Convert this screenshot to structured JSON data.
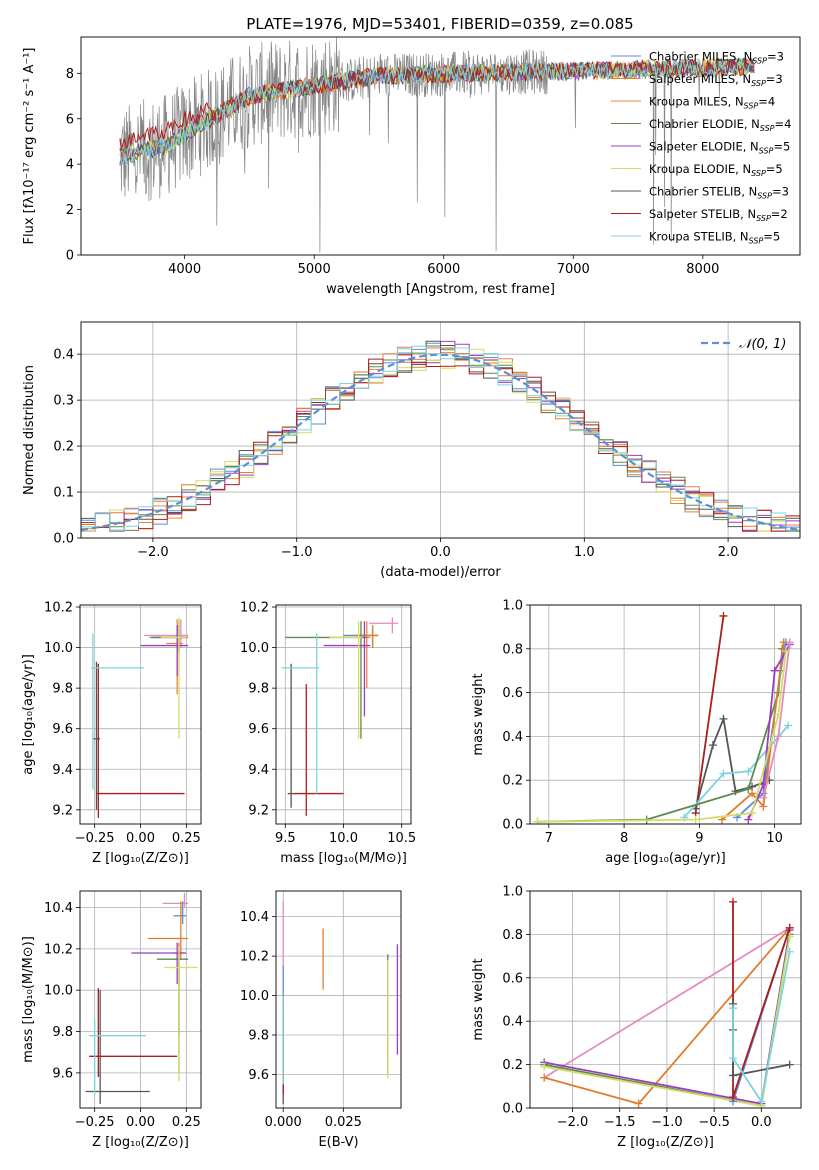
{
  "figure": {
    "title": "PLATE=1976, MJD=53401, FIBERID=0359, z=0.085"
  },
  "colors": {
    "cm": "#5b8fd6",
    "sm": "#e07d2c",
    "km": "#e8843a",
    "ce": "#5f8a4e",
    "se": "#9b3fbf",
    "ke": "#d4dc6a",
    "cs": "#555555",
    "ss": "#b01c1c",
    "ks": "#7dd4dc",
    "pink": "#e68ac3",
    "gray": "#858585",
    "dash": "#5b8fd6"
  },
  "chart_data": [
    {
      "id": "spectrum",
      "type": "line",
      "title": "PLATE=1976, MJD=53401, FIBERID=0359, z=0.085",
      "xlabel": "wavelength [Angstrom, rest frame]",
      "ylabel": "Flux [fλ10⁻¹⁷ erg cm⁻² s⁻¹ A⁻¹]",
      "xlim": [
        3200,
        8750
      ],
      "ylim": [
        0,
        9.6
      ],
      "xticks": [
        4000,
        5000,
        6000,
        7000,
        8000
      ],
      "yticks": [
        0,
        2,
        4,
        6,
        8
      ],
      "grid": false,
      "legend_position": "top-right",
      "data_x_range": [
        3500,
        8400
      ],
      "legend": [
        {
          "label": "Chabrier MILES, N",
          "sub": "SSP",
          "suffix": "=3",
          "color": "#5b8fd6"
        },
        {
          "label": "Salpeter MILES, N",
          "sub": "SSP",
          "suffix": "=3",
          "color": "#e07d2c"
        },
        {
          "label": "Kroupa MILES, N",
          "sub": "SSP",
          "suffix": "=4",
          "color": "#e8843a"
        },
        {
          "label": "Chabrier ELODIE, N",
          "sub": "SSP",
          "suffix": "=4",
          "color": "#5f8a4e"
        },
        {
          "label": "Salpeter ELODIE, N",
          "sub": "SSP",
          "suffix": "=5",
          "color": "#9b3fbf"
        },
        {
          "label": "Kroupa ELODIE, N",
          "sub": "SSP",
          "suffix": "=5",
          "color": "#d4dc6a"
        },
        {
          "label": "Chabrier STELIB, N",
          "sub": "SSP",
          "suffix": "=3",
          "color": "#555555"
        },
        {
          "label": "Salpeter STELIB, N",
          "sub": "SSP",
          "suffix": "=2",
          "color": "#b01c1c"
        },
        {
          "label": "Kroupa STELIB, N",
          "sub": "SSP",
          "suffix": "=5",
          "color": "#7dd4dc"
        }
      ]
    },
    {
      "id": "residuals",
      "type": "histogram",
      "xlabel": "(data-model)/error",
      "ylabel": "Normed distribution",
      "xlim": [
        -2.5,
        2.5
      ],
      "ylim": [
        0,
        0.47
      ],
      "xticks": [
        -2,
        -1,
        0,
        1,
        2
      ],
      "yticks": [
        0.0,
        0.1,
        0.2,
        0.3,
        0.4
      ],
      "grid": true,
      "legend_position": "top-right",
      "legend": [
        {
          "label": "𝒩(0, 1)",
          "style": "dashed"
        }
      ],
      "bin_edges_start": -2.5,
      "bin_width": 0.1,
      "normal_curve": {
        "mean": 0,
        "std": 1
      }
    },
    {
      "id": "Z_vs_age",
      "type": "errorbar",
      "xlabel": "Z [log₁₀(Z/Z⊙)]",
      "ylabel": "age  [log₁₀(age/yr)]",
      "xlim": [
        -0.33,
        0.33
      ],
      "ylim": [
        9.13,
        10.21
      ],
      "xticks": [
        -0.25,
        0.0,
        0.25
      ],
      "yticks": [
        9.2,
        9.4,
        9.6,
        9.8,
        10.0,
        10.2
      ],
      "grid": true,
      "points": [
        {
          "x": 0.22,
          "y": 10.06,
          "xerr": [
            0.2,
            0.04
          ],
          "yerr": [
            0.06,
            0.08
          ],
          "color": "#e68ac3"
        },
        {
          "x": 0.2,
          "y": 10.05,
          "xerr": [
            0.15,
            0.05
          ],
          "yerr": [
            0.07,
            0.06
          ],
          "color": "#5b8fd6"
        },
        {
          "x": 0.21,
          "y": 10.05,
          "xerr": [
            0.12,
            0.05
          ],
          "yerr": [
            0.07,
            0.06
          ],
          "color": "#e07d2c"
        },
        {
          "x": 0.2,
          "y": 10.02,
          "xerr": [
            0.06,
            0.03
          ],
          "yerr": [
            0.25,
            0.12
          ],
          "color": "#e8843a"
        },
        {
          "x": 0.21,
          "y": 10.05,
          "xerr": [
            0.15,
            0.03
          ],
          "yerr": [
            0.08,
            0.08
          ],
          "color": "#5f8a4e"
        },
        {
          "x": 0.2,
          "y": 10.01,
          "xerr": [
            0.2,
            0.06
          ],
          "yerr": [
            0.15,
            0.1
          ],
          "color": "#9b3fbf"
        },
        {
          "x": 0.21,
          "y": 10.05,
          "xerr": [
            0.1,
            0.04
          ],
          "yerr": [
            0.5,
            0.1
          ],
          "color": "#d4dc6a"
        },
        {
          "x": -0.24,
          "y": 9.55,
          "xerr": [
            0.02,
            0.02
          ],
          "yerr": [
            0.35,
            0.38
          ],
          "color": "#555555"
        },
        {
          "x": -0.23,
          "y": 9.28,
          "xerr": [
            0.01,
            0.47
          ],
          "yerr": [
            0.12,
            0.64
          ],
          "color": "#b01c1c"
        },
        {
          "x": -0.26,
          "y": 9.9,
          "xerr": [
            0.01,
            0.28
          ],
          "yerr": [
            0.6,
            0.17
          ],
          "color": "#7dd4dc"
        }
      ]
    },
    {
      "id": "mass_vs_age",
      "type": "errorbar",
      "xlabel": "mass [log₁₀(M/M⊙)]",
      "ylabel": "",
      "xlim": [
        9.42,
        10.58
      ],
      "ylim": [
        9.13,
        10.21
      ],
      "xticks": [
        9.5,
        10.0,
        10.5
      ],
      "yticks": [
        9.2,
        9.4,
        9.6,
        9.8,
        10.0,
        10.2
      ],
      "grid": true,
      "points": [
        {
          "x": 10.42,
          "y": 10.12,
          "xerr": [
            0.2,
            0.05
          ],
          "yerr": [
            0.05,
            0.03
          ],
          "color": "#e68ac3"
        },
        {
          "x": 10.25,
          "y": 10.06,
          "xerr": [
            0.25,
            0.04
          ],
          "yerr": [
            0.06,
            0.05
          ],
          "color": "#5b8fd6"
        },
        {
          "x": 10.25,
          "y": 10.06,
          "xerr": [
            0.15,
            0.05
          ],
          "yerr": [
            0.06,
            0.05
          ],
          "color": "#e07d2c"
        },
        {
          "x": 10.2,
          "y": 10.05,
          "xerr": [
            0.08,
            0.03
          ],
          "yerr": [
            0.25,
            0.08
          ],
          "color": "#e8843a"
        },
        {
          "x": 10.15,
          "y": 10.05,
          "xerr": [
            0.65,
            0.05
          ],
          "yerr": [
            0.5,
            0.08
          ],
          "color": "#5f8a4e"
        },
        {
          "x": 10.18,
          "y": 10.01,
          "xerr": [
            0.35,
            0.05
          ],
          "yerr": [
            0.35,
            0.12
          ],
          "color": "#9b3fbf"
        },
        {
          "x": 10.13,
          "y": 10.05,
          "xerr": [
            0.25,
            0.03
          ],
          "yerr": [
            0.5,
            0.08
          ],
          "color": "#d4dc6a"
        },
        {
          "x": 9.55,
          "y": 9.28,
          "xerr": [
            0.03,
            0.05
          ],
          "yerr": [
            0.07,
            0.64
          ],
          "color": "#555555"
        },
        {
          "x": 9.68,
          "y": 9.28,
          "xerr": [
            0.1,
            0.32
          ],
          "yerr": [
            0.11,
            0.54
          ],
          "color": "#b01c1c"
        },
        {
          "x": 9.77,
          "y": 9.9,
          "xerr": [
            0.3,
            0.02
          ],
          "yerr": [
            0.62,
            0.17
          ],
          "color": "#7dd4dc"
        }
      ]
    },
    {
      "id": "age_vs_weight",
      "type": "line",
      "xlabel": "age  [log₁₀(age/yr)]",
      "ylabel": "mass weight",
      "xlim": [
        6.75,
        10.35
      ],
      "ylim": [
        0,
        1.0
      ],
      "xticks": [
        7,
        8,
        9,
        10
      ],
      "yticks": [
        0.0,
        0.2,
        0.4,
        0.6,
        0.8,
        1.0
      ],
      "grid": true,
      "series": [
        {
          "color": "#b01c1c",
          "x": [
            8.95,
            9.32
          ],
          "y": [
            0.05,
            0.95
          ]
        },
        {
          "color": "#555555",
          "x": [
            8.95,
            9.18,
            9.32,
            9.48,
            9.7,
            9.93
          ],
          "y": [
            0.07,
            0.36,
            0.48,
            0.15,
            0.17,
            0.2
          ]
        },
        {
          "color": "#7dd4dc",
          "x": [
            8.8,
            9.32,
            9.65,
            10.18
          ],
          "y": [
            0.03,
            0.23,
            0.24,
            0.45
          ]
        },
        {
          "color": "#5f8a4e",
          "x": [
            6.85,
            8.3,
            9.65,
            10.05,
            10.1
          ],
          "y": [
            0.01,
            0.02,
            0.16,
            0.6,
            0.8
          ]
        },
        {
          "color": "#5b8fd6",
          "x": [
            9.5,
            9.85,
            10.08,
            10.15
          ],
          "y": [
            0.03,
            0.14,
            0.7,
            0.83
          ]
        },
        {
          "color": "#e07d2c",
          "x": [
            9.3,
            9.7,
            9.85,
            10.12
          ],
          "y": [
            0.02,
            0.14,
            0.08,
            0.83
          ]
        },
        {
          "color": "#9b3fbf",
          "x": [
            9.65,
            9.85,
            10.0,
            10.2
          ],
          "y": [
            0.02,
            0.18,
            0.7,
            0.82
          ]
        },
        {
          "color": "#e68ac3",
          "x": [
            9.85,
            10.05,
            10.2
          ],
          "y": [
            0.12,
            0.4,
            0.83
          ]
        },
        {
          "color": "#d4dc6a",
          "x": [
            6.85,
            8.95,
            9.7,
            10.05,
            10.15
          ],
          "y": [
            0.01,
            0.02,
            0.05,
            0.5,
            0.79
          ]
        }
      ]
    },
    {
      "id": "Z_vs_mass",
      "type": "errorbar",
      "xlabel": "Z [log₁₀(Z/Z⊙)]",
      "ylabel": "mass [log₁₀(M/M⊙)]",
      "xlim": [
        -0.33,
        0.33
      ],
      "ylim": [
        9.43,
        10.48
      ],
      "xticks": [
        -0.25,
        0.0,
        0.25
      ],
      "yticks": [
        9.6,
        9.8,
        10.0,
        10.2,
        10.4
      ],
      "grid": true,
      "points": [
        {
          "x": 0.24,
          "y": 10.42,
          "xerr": [
            0.12,
            0.02
          ],
          "yerr": [
            0.02,
            0.05
          ],
          "color": "#e68ac3"
        },
        {
          "x": 0.23,
          "y": 10.36,
          "xerr": [
            0.05,
            0.02
          ],
          "yerr": [
            0.04,
            0.07
          ],
          "color": "#5b8fd6"
        },
        {
          "x": 0.22,
          "y": 10.25,
          "xerr": [
            0.18,
            0.04
          ],
          "yerr": [
            0.1,
            0.18
          ],
          "color": "#e07d2c"
        },
        {
          "x": 0.21,
          "y": 10.18,
          "xerr": [
            0.03,
            0.03
          ],
          "yerr": [
            0.4,
            0.05
          ],
          "color": "#e8843a"
        },
        {
          "x": 0.21,
          "y": 10.15,
          "xerr": [
            0.12,
            0.05
          ],
          "yerr": [
            0.55,
            0.05
          ],
          "color": "#5f8a4e"
        },
        {
          "x": 0.2,
          "y": 10.18,
          "xerr": [
            0.25,
            0.05
          ],
          "yerr": [
            0.15,
            0.05
          ],
          "color": "#9b3fbf"
        },
        {
          "x": 0.21,
          "y": 10.11,
          "xerr": [
            0.08,
            0.1
          ],
          "yerr": [
            0.55,
            0.1
          ],
          "color": "#d4dc6a"
        },
        {
          "x": -0.22,
          "y": 9.51,
          "xerr": [
            0.08,
            0.27
          ],
          "yerr": [
            0.06,
            0.49
          ],
          "color": "#555555"
        },
        {
          "x": -0.23,
          "y": 9.68,
          "xerr": [
            0.05,
            0.43
          ],
          "yerr": [
            0.1,
            0.33
          ],
          "color": "#b01c1c"
        },
        {
          "x": -0.25,
          "y": 9.78,
          "xerr": [
            0.03,
            0.28
          ],
          "yerr": [
            0.28,
            0.08
          ],
          "color": "#7dd4dc"
        }
      ]
    },
    {
      "id": "ebv_vs_mass",
      "type": "errorbar",
      "xlabel": "E(B-V)",
      "ylabel": "",
      "xlim": [
        -0.003,
        0.049
      ],
      "ylim": [
        9.43,
        10.53
      ],
      "xticks": [
        0.0,
        0.025
      ],
      "yticks": [
        9.6,
        9.8,
        10.0,
        10.2,
        10.4
      ],
      "grid": true,
      "points": [
        {
          "x": 0.0,
          "y": 10.3,
          "xerr": [
            0,
            0
          ],
          "yerr": [
            0.17,
            0.18
          ],
          "color": "#e68ac3"
        },
        {
          "x": 0.0,
          "y": 10.0,
          "xerr": [
            0,
            0
          ],
          "yerr": [
            0.4,
            0.15
          ],
          "color": "#5b8fd6"
        },
        {
          "x": 0.0,
          "y": 9.7,
          "xerr": [
            0,
            0
          ],
          "yerr": [
            0.25,
            0.3
          ],
          "color": "#555555"
        },
        {
          "x": 0.0,
          "y": 9.7,
          "xerr": [
            0,
            0
          ],
          "yerr": [
            0.2,
            0.3
          ],
          "color": "#b01c1c"
        },
        {
          "x": 0.0,
          "y": 9.75,
          "xerr": [
            0,
            0
          ],
          "yerr": [
            0.2,
            0.25
          ],
          "color": "#7dd4dc"
        },
        {
          "x": 0.0166,
          "y": 10.18,
          "xerr": [
            0,
            0
          ],
          "yerr": [
            0.15,
            0.16
          ],
          "color": "#e07d2c"
        },
        {
          "x": 0.0435,
          "y": 9.9,
          "xerr": [
            0,
            0
          ],
          "yerr": [
            0.3,
            0.31
          ],
          "color": "#5f8a4e"
        },
        {
          "x": 0.0435,
          "y": 9.88,
          "xerr": [
            0,
            0
          ],
          "yerr": [
            0.3,
            0.3
          ],
          "color": "#d4dc6a"
        },
        {
          "x": 0.0475,
          "y": 9.98,
          "xerr": [
            0,
            0
          ],
          "yerr": [
            0.28,
            0.28
          ],
          "color": "#9b3fbf"
        }
      ]
    },
    {
      "id": "Z_vs_weight",
      "type": "line",
      "xlabel": "Z [log₁₀(Z/Z⊙)]",
      "ylabel": "mass weight",
      "xlim": [
        -2.45,
        0.42
      ],
      "ylim": [
        0,
        1.0
      ],
      "xticks": [
        -2.0,
        -1.5,
        -1.0,
        -0.5,
        0.0
      ],
      "yticks": [
        0.0,
        0.2,
        0.4,
        0.6,
        0.8,
        1.0
      ],
      "grid": true,
      "series": [
        {
          "color": "#e68ac3",
          "x": [
            -2.3,
            0.3
          ],
          "y": [
            0.14,
            0.83
          ]
        },
        {
          "color": "#e07d2c",
          "x": [
            -2.3,
            -1.3,
            0.3
          ],
          "y": [
            0.14,
            0.02,
            0.83
          ]
        },
        {
          "color": "#9b3fbf",
          "x": [
            -2.3,
            0.0,
            0.3
          ],
          "y": [
            0.21,
            0.02,
            0.82
          ]
        },
        {
          "color": "#5f8a4e",
          "x": [
            -2.3,
            0.0,
            0.3
          ],
          "y": [
            0.2,
            0.01,
            0.8
          ]
        },
        {
          "color": "#d4dc6a",
          "x": [
            -2.3,
            0.0,
            0.3
          ],
          "y": [
            0.19,
            0.01,
            0.79
          ]
        },
        {
          "color": "#5b8fd6",
          "x": [
            -0.3,
            0.3
          ],
          "y": [
            0.03,
            0.83
          ]
        },
        {
          "color": "#b01c1c",
          "x": [
            -0.3,
            -0.3,
            0.3
          ],
          "y": [
            0.95,
            0.05,
            0.83
          ]
        },
        {
          "color": "#555555",
          "x": [
            -0.3,
            -0.3,
            -0.3,
            0.3
          ],
          "y": [
            0.48,
            0.36,
            0.15,
            0.2
          ]
        },
        {
          "color": "#7dd4dc",
          "x": [
            -0.3,
            -0.3,
            0.0,
            0.3
          ],
          "y": [
            0.46,
            0.23,
            0.03,
            0.72
          ]
        }
      ]
    }
  ]
}
